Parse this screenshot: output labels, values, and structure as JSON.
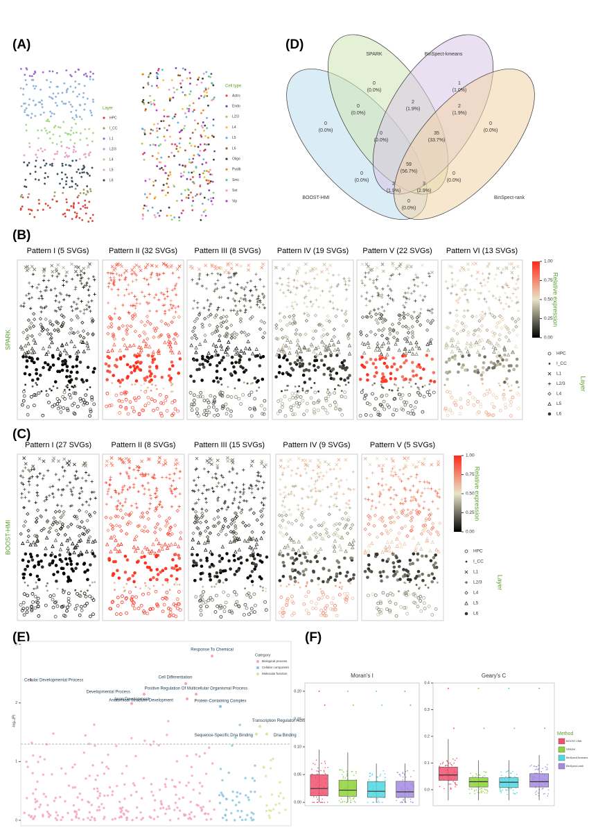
{
  "panel_labels": [
    "(A)",
    "(B)",
    "(C)",
    "(D)",
    "(E)",
    "(F)"
  ],
  "panel_a": {
    "layer_legend": {
      "title": "Layer",
      "items": [
        "HPC",
        "I_CC",
        "L1",
        "L2/3",
        "L4",
        "L5",
        "L6"
      ],
      "colors": [
        "#d9453a",
        "#9e9a5c",
        "#9b6fc9",
        "#8fb3d9",
        "#a7d98a",
        "#e6a3c8",
        "#3d4f5c"
      ]
    },
    "cell_legend": {
      "title": "Cell type",
      "items": [
        "Astro",
        "Endo",
        "L2/3",
        "L4",
        "L5",
        "L6",
        "Oligo",
        "Pvalb",
        "Smc",
        "Sst",
        "Vip"
      ],
      "colors": [
        "#e74c3c",
        "#7b3fa0",
        "#8fd16a",
        "#f0c24a",
        "#6aa9e0",
        "#9e5f2e",
        "#3a3a3a",
        "#f08a24",
        "#5ac2b8",
        "#e59ad0",
        "#c23ac2"
      ]
    }
  },
  "panel_b": {
    "method": "SPARK",
    "titles": [
      "Pattern I (5 SVGs)",
      "Pattern II (32 SVGs)",
      "Pattern III (8 SVGs)",
      "Pattern IV (19 SVGs)",
      "Pattern V (22 SVGs)",
      "Pattern VI (13 SVGs)"
    ],
    "colorbar": {
      "title": "Relative expression",
      "ticks": [
        {
          "value": 0,
          "label": "0.00"
        },
        {
          "value": 0.25,
          "label": "0.25"
        },
        {
          "value": 0.5,
          "label": "0.50"
        },
        {
          "value": 0.75,
          "label": "0.75"
        },
        {
          "value": 1,
          "label": "1.00"
        }
      ]
    },
    "layer_legend": {
      "title": "Layer",
      "items": [
        "HPC",
        "I_CC",
        "L1",
        "L2/3",
        "L4",
        "L5",
        "L6"
      ]
    }
  },
  "panel_c": {
    "method": "BOOST-HMI",
    "titles": [
      "Pattern I (27 SVGs)",
      "Pattern II (8 SVGs)",
      "Pattern III (15 SVGs)",
      "Pattern IV (9 SVGs)",
      "Pattern V (5 SVGs)"
    ],
    "colorbar": {
      "title": "Relative expression",
      "ticks": [
        {
          "value": 0,
          "label": "0.00"
        },
        {
          "value": 0.25,
          "label": "0.25"
        },
        {
          "value": 0.5,
          "label": "0.50"
        },
        {
          "value": 0.75,
          "label": "0.75"
        },
        {
          "value": 1,
          "label": "1.00"
        }
      ]
    },
    "layer_legend": {
      "title": "Layer",
      "items": [
        "HPC",
        "I_CC",
        "L1",
        "L2/3",
        "L4",
        "L5",
        "L6"
      ]
    }
  },
  "panel_d": {
    "sets": [
      "SPARK",
      "BinSpect-kmeans",
      "BOOST-HMI",
      "BinSpect-rank"
    ],
    "colors": [
      "#cfe6b4",
      "#d9c6e6",
      "#bcdcef",
      "#f3d3a8"
    ],
    "regions": [
      {
        "count": 0,
        "percent": "(0.0%)"
      },
      {
        "count": 1,
        "percent": "(1.0%)"
      },
      {
        "count": 0,
        "percent": "(0.0%)"
      },
      {
        "count": 0,
        "percent": "(0.0%)"
      },
      {
        "count": 2,
        "percent": "(1.9%)"
      },
      {
        "count": 0,
        "percent": "(0.0%)"
      },
      {
        "count": 2,
        "percent": "(1.9%)"
      },
      {
        "count": 0,
        "percent": "(0.0%)"
      },
      {
        "count": 35,
        "percent": "(33.7%)"
      },
      {
        "count": 0,
        "percent": "(0.0%)"
      },
      {
        "count": 59,
        "percent": "(56.7%)"
      },
      {
        "count": 0,
        "percent": "(0.0%)"
      },
      {
        "count": 2,
        "percent": "(1.9%)"
      },
      {
        "count": 3,
        "percent": "(2.9%)"
      },
      {
        "count": 0,
        "percent": "(0.0%)"
      }
    ]
  },
  "chart_data": [
    {
      "type": "scatter",
      "y_label": "-log₁₀(P)",
      "ylim": [
        0,
        3.05
      ],
      "yticks": [
        0,
        1,
        2,
        3
      ],
      "xlim": [
        0,
        390
      ],
      "threshold": 1.3,
      "legend_title": "Category",
      "series": [
        {
          "name": "Biological process",
          "color": "#f4a3b8",
          "x": [
            15,
            276,
            238,
            253,
            178,
            240,
            160
          ],
          "values": [
            2.39,
            2.8,
            2.33,
            2.15,
            2.15,
            2.07,
            1.99
          ],
          "labels": [
            "Cellular Developmental Process",
            "Response To Chemical",
            "Cell Differentiation",
            "Positive Regulation Of Multicellular Organismal Process",
            "Developmental Process",
            "Anatomical Structure Development",
            "Axon Development"
          ]
        },
        {
          "name": "Cellular component",
          "color": "#7fc4e0",
          "x": [
            288
          ],
          "values": [
            1.94
          ],
          "labels": [
            "Protein-Containing Complex"
          ]
        },
        {
          "name": "Molecular function",
          "color": "#d8e59a",
          "x": [
            345,
            340,
            355
          ],
          "values": [
            1.6,
            1.47,
            1.47
          ],
          "labels": [
            "Transcription Regulator Activity",
            "Sequence-Specific Dna Binding",
            "Dna Binding"
          ]
        }
      ]
    },
    {
      "type": "box",
      "title": "Moran's I",
      "ylim": [
        -0.006,
        0.215
      ],
      "yticks": [
        {
          "value": 0,
          "label": "0.00"
        },
        {
          "value": 0.05,
          "label": "0.05"
        },
        {
          "value": 0.1,
          "label": "0.10"
        },
        {
          "value": 0.15,
          "label": "0.15"
        },
        {
          "value": 0.2,
          "label": "0.20"
        }
      ],
      "series": [
        {
          "name": "BOOST-HMI",
          "color": "#f0506e",
          "q1": 0.012,
          "median": 0.025,
          "q3": 0.05,
          "whisker_low": 0,
          "whisker_high": 0.095,
          "outliers": [
            0.2,
            0.175
          ]
        },
        {
          "name": "SPARK",
          "color": "#8ed43a",
          "q1": 0.011,
          "median": 0.022,
          "q3": 0.04,
          "whisker_low": 0,
          "whisker_high": 0.09,
          "outliers": [
            0.2,
            0.175
          ]
        },
        {
          "name": "BinSpect-kmeans",
          "color": "#4fd8e0",
          "q1": 0.009,
          "median": 0.02,
          "q3": 0.0375,
          "whisker_low": 0,
          "whisker_high": 0.07,
          "outliers": [
            0.2,
            0.175
          ]
        },
        {
          "name": "BinSpect-rank",
          "color": "#a48be0",
          "q1": 0.009,
          "median": 0.019,
          "q3": 0.038,
          "whisker_low": 0,
          "whisker_high": 0.07,
          "outliers": [
            0.2,
            0.175
          ]
        }
      ]
    },
    {
      "type": "box",
      "title": "Geary's C",
      "ylim": [
        -0.06,
        0.4
      ],
      "yticks": [
        {
          "value": 0,
          "label": "0.0"
        },
        {
          "value": 0.1,
          "label": "0.1"
        },
        {
          "value": 0.2,
          "label": "0.2"
        },
        {
          "value": 0.3,
          "label": "0.3"
        },
        {
          "value": 0.4,
          "label": "0.4"
        }
      ],
      "legend_title": "Method",
      "series": [
        {
          "name": "BOOST-HMI",
          "color": "#f0506e",
          "q1": 0.035,
          "median": 0.055,
          "q3": 0.085,
          "whisker_low": -0.04,
          "whisker_high": 0.19,
          "outliers": [
            0.38,
            0.23
          ]
        },
        {
          "name": "SPARK",
          "color": "#8ed43a",
          "q1": 0.01,
          "median": 0.03,
          "q3": 0.045,
          "whisker_low": -0.04,
          "whisker_high": 0.11,
          "outliers": [
            0.38,
            0.23
          ]
        },
        {
          "name": "BinSpect-kmeans",
          "color": "#4fd8e0",
          "q1": 0.008,
          "median": 0.028,
          "q3": 0.045,
          "whisker_low": -0.04,
          "whisker_high": 0.11,
          "outliers": [
            0.38,
            0.23
          ]
        },
        {
          "name": "BinSpect-rank",
          "color": "#a48be0",
          "q1": 0.01,
          "median": 0.03,
          "q3": 0.06,
          "whisker_low": -0.04,
          "whisker_high": 0.13,
          "outliers": [
            0.38,
            0.23
          ]
        }
      ]
    }
  ]
}
